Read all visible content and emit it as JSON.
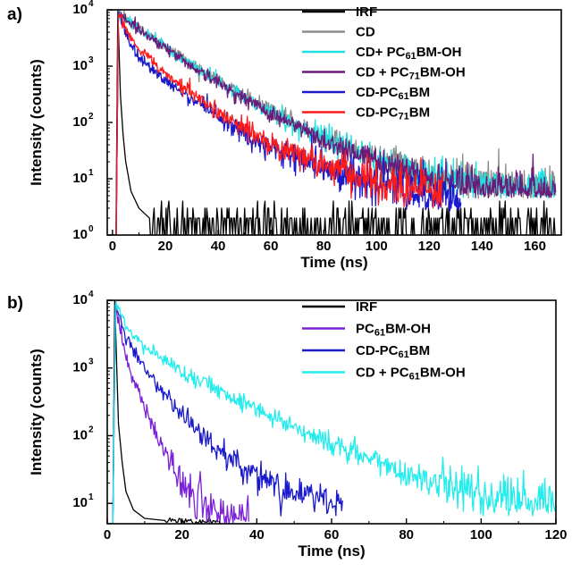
{
  "chart_data": [
    {
      "panel": "a)",
      "type": "line",
      "title": "",
      "xlabel": "Time (ns)",
      "ylabel": "Intensity (counts)",
      "xlim": [
        -2,
        170
      ],
      "ylim": [
        1,
        10000
      ],
      "yscale": "log",
      "x_ticks": [
        "0",
        "20",
        "40",
        "60",
        "80",
        "100",
        "120",
        "140",
        "160"
      ],
      "y_ticks": [
        {
          "base": "10",
          "exp": "0"
        },
        {
          "base": "10",
          "exp": "1"
        },
        {
          "base": "10",
          "exp": "2"
        },
        {
          "base": "10",
          "exp": "3"
        },
        {
          "base": "10",
          "exp": "4"
        }
      ],
      "grid": false,
      "legend_position": "top-right",
      "series": [
        {
          "name": "IRF",
          "legend": [
            {
              "t": "IRF"
            }
          ],
          "color": "#000000",
          "kind": "irf",
          "peak_t": 2.0,
          "rise_start": 1.3,
          "tail_levels": [
            [
              3,
              300
            ],
            [
              4,
              60
            ],
            [
              5,
              20
            ],
            [
              7,
              6
            ],
            [
              10,
              3
            ],
            [
              14,
              2
            ]
          ],
          "noise_floor": 1.6,
          "sparse": true,
          "end_t": 168
        },
        {
          "name": "CD",
          "legend": [
            {
              "t": "CD"
            }
          ],
          "color": "#8c8c8c",
          "kind": "decay",
          "peak_t": 2.2,
          "rise_start": 1.4,
          "curve": [
            [
              2.2,
              9000
            ],
            [
              10,
              4800
            ],
            [
              20,
              2300
            ],
            [
              30,
              1100
            ],
            [
              40,
              560
            ],
            [
              50,
              290
            ],
            [
              60,
              160
            ],
            [
              80,
              55
            ],
            [
              100,
              24
            ],
            [
              120,
              12
            ],
            [
              140,
              8
            ],
            [
              168,
              7
            ]
          ],
          "noise_floor": 5,
          "end_t": 168
        },
        {
          "name": "CD+ PC61BM-OH",
          "legend": [
            {
              "t": "CD+ PC"
            },
            {
              "t": "61",
              "sub": true
            },
            {
              "t": "BM-OH"
            }
          ],
          "color": "#1ee0e0",
          "kind": "decay",
          "peak_t": 2.2,
          "rise_start": 1.4,
          "curve": [
            [
              2.2,
              8800
            ],
            [
              10,
              4600
            ],
            [
              20,
              2200
            ],
            [
              30,
              1050
            ],
            [
              40,
              530
            ],
            [
              50,
              275
            ],
            [
              60,
              150
            ],
            [
              80,
              50
            ],
            [
              100,
              22
            ],
            [
              120,
              11
            ],
            [
              140,
              7.5
            ],
            [
              168,
              6.5
            ]
          ],
          "noise_floor": 5,
          "end_t": 168
        },
        {
          "name": "CD + PC71BM-OH",
          "legend": [
            {
              "t": "CD + PC"
            },
            {
              "t": "71",
              "sub": true
            },
            {
              "t": "BM-OH"
            }
          ],
          "color": "#6a1b7a",
          "kind": "decay",
          "peak_t": 2.2,
          "rise_start": 1.4,
          "curve": [
            [
              2.2,
              8600
            ],
            [
              10,
              4500
            ],
            [
              20,
              2150
            ],
            [
              30,
              1000
            ],
            [
              40,
              510
            ],
            [
              50,
              265
            ],
            [
              60,
              145
            ],
            [
              80,
              48
            ],
            [
              100,
              21
            ],
            [
              120,
              10.5
            ],
            [
              140,
              7
            ],
            [
              168,
              6
            ]
          ],
          "noise_floor": 5,
          "end_t": 168
        },
        {
          "name": "CD-PC61BM",
          "legend": [
            {
              "t": "CD-PC"
            },
            {
              "t": "61",
              "sub": true
            },
            {
              "t": "BM"
            }
          ],
          "color": "#1a1acc",
          "kind": "decay",
          "peak_t": 2.2,
          "rise_start": 1.4,
          "curve": [
            [
              2.2,
              8500
            ],
            [
              6,
              3000
            ],
            [
              10,
              1400
            ],
            [
              20,
              560
            ],
            [
              30,
              260
            ],
            [
              40,
              120
            ],
            [
              50,
              62
            ],
            [
              60,
              35
            ],
            [
              80,
              15
            ],
            [
              100,
              8
            ],
            [
              120,
              5
            ],
            [
              132,
              4
            ]
          ],
          "noise_floor": 3,
          "end_t": 132
        },
        {
          "name": "CD-PC71BM",
          "legend": [
            {
              "t": "CD-PC"
            },
            {
              "t": "71",
              "sub": true
            },
            {
              "t": "BM"
            }
          ],
          "color": "#ff1a1a",
          "kind": "decay",
          "peak_t": 2.2,
          "rise_start": 1.4,
          "curve": [
            [
              2.2,
              8700
            ],
            [
              6,
              3800
            ],
            [
              10,
              2000
            ],
            [
              20,
              760
            ],
            [
              30,
              330
            ],
            [
              40,
              150
            ],
            [
              50,
              78
            ],
            [
              60,
              42
            ],
            [
              80,
              17
            ],
            [
              100,
              9
            ],
            [
              120,
              6
            ],
            [
              125,
              5.5
            ]
          ],
          "noise_floor": 3,
          "end_t": 125
        }
      ]
    },
    {
      "panel": "b)",
      "type": "line",
      "title": "",
      "xlabel": "Time (ns)",
      "ylabel": "Intensity (counts)",
      "xlim": [
        0,
        120
      ],
      "ylim": [
        5,
        10000
      ],
      "yscale": "log",
      "x_ticks": [
        "0",
        "20",
        "40",
        "60",
        "80",
        "100",
        "120"
      ],
      "y_ticks": [
        {
          "base": "10",
          "exp": "1"
        },
        {
          "base": "10",
          "exp": "2"
        },
        {
          "base": "10",
          "exp": "3"
        },
        {
          "base": "10",
          "exp": "4"
        }
      ],
      "grid": false,
      "legend_position": "top-right",
      "series": [
        {
          "name": "IRF",
          "legend": [
            {
              "t": "IRF"
            }
          ],
          "color": "#000000",
          "kind": "irf",
          "peak_t": 2.0,
          "rise_start": 1.5,
          "tail_levels": [
            [
              3,
              150
            ],
            [
              4,
              40
            ],
            [
              5,
              15
            ],
            [
              7,
              8
            ],
            [
              10,
              6
            ],
            [
              15,
              5.6
            ]
          ],
          "noise_floor": 5.5,
          "end_t": 30
        },
        {
          "name": "PC61BM-OH",
          "legend": [
            {
              "t": "PC"
            },
            {
              "t": "61",
              "sub": true
            },
            {
              "t": "BM-OH"
            }
          ],
          "color": "#7b22d9",
          "kind": "decay",
          "peak_t": 2.2,
          "rise_start": 1.5,
          "curve": [
            [
              2.2,
              9000
            ],
            [
              5,
              1400
            ],
            [
              10,
              260
            ],
            [
              15,
              60
            ],
            [
              20,
              20
            ],
            [
              25,
              10
            ],
            [
              30,
              7
            ],
            [
              38,
              6
            ]
          ],
          "noise_floor": 5.5,
          "end_t": 38
        },
        {
          "name": "CD-PC61BM",
          "legend": [
            {
              "t": "CD-PC"
            },
            {
              "t": "61",
              "sub": true
            },
            {
              "t": "BM"
            }
          ],
          "color": "#1a1acc",
          "kind": "decay",
          "peak_t": 2.2,
          "rise_start": 1.5,
          "curve": [
            [
              2.2,
              9000
            ],
            [
              5,
              2800
            ],
            [
              10,
              1000
            ],
            [
              20,
              200
            ],
            [
              30,
              60
            ],
            [
              40,
              22
            ],
            [
              50,
              13
            ],
            [
              63,
              10
            ]
          ],
          "noise_floor": 7,
          "end_t": 63
        },
        {
          "name": "CD + PC61BM-OH",
          "legend": [
            {
              "t": "CD + PC"
            },
            {
              "t": "61",
              "sub": true
            },
            {
              "t": "BM-OH"
            }
          ],
          "color": "#22ecec",
          "kind": "decay",
          "peak_t": 2.2,
          "rise_start": 1.5,
          "curve": [
            [
              2.2,
              9500
            ],
            [
              5,
              4000
            ],
            [
              10,
              2000
            ],
            [
              20,
              900
            ],
            [
              40,
              250
            ],
            [
              60,
              75
            ],
            [
              80,
              28
            ],
            [
              100,
              14
            ],
            [
              120,
              9
            ]
          ],
          "noise_floor": 7,
          "end_t": 120
        }
      ]
    }
  ]
}
